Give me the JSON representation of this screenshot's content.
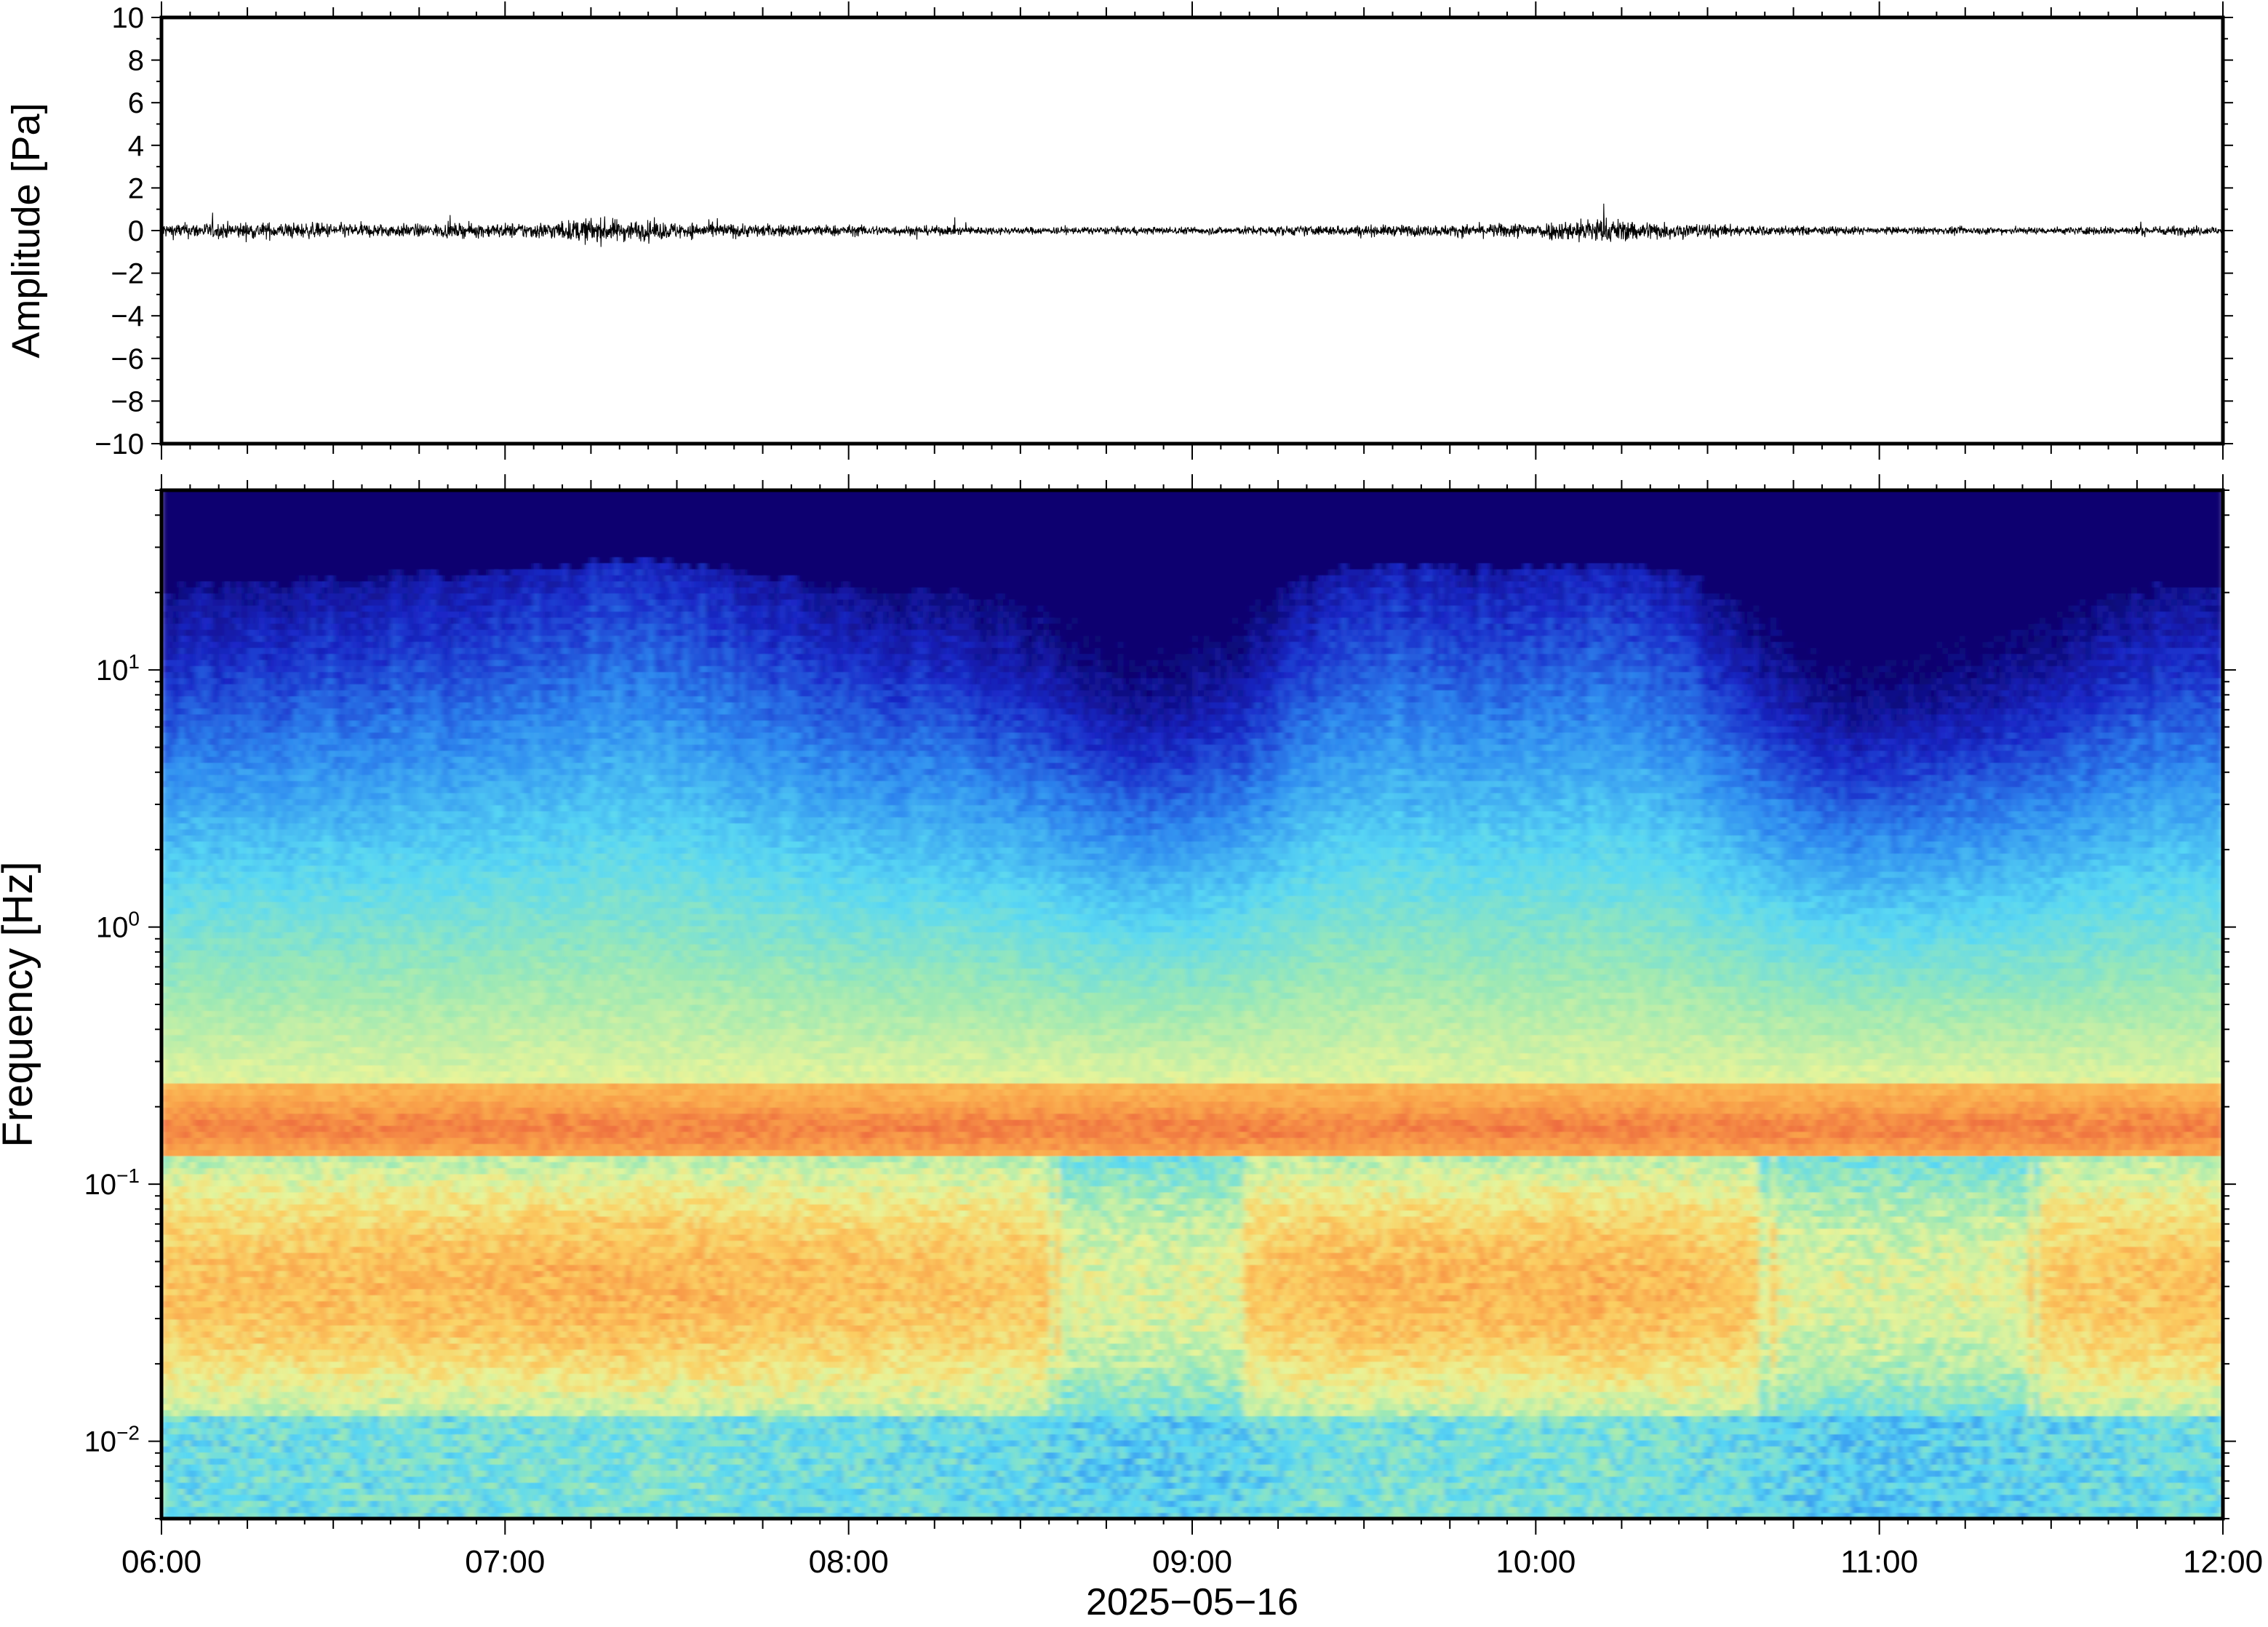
{
  "chart_data": [
    {
      "type": "line",
      "panel": "waveform",
      "ylabel": "Amplitude [Pa]",
      "ylim": [
        -10,
        10
      ],
      "yticks": [
        10,
        8,
        6,
        4,
        2,
        0,
        -2,
        -4,
        -6,
        -8,
        -10
      ],
      "ytick_labels": [
        "10",
        "8",
        "6",
        "4",
        "2",
        "0",
        "−2",
        "−4",
        "−6",
        "−8",
        "−10"
      ],
      "x_start": "06:00",
      "x_end": "12:00",
      "series_color": "#000000",
      "envelope": {
        "times": [
          "06:00",
          "06:15",
          "06:30",
          "06:45",
          "07:00",
          "07:10",
          "07:15",
          "07:20",
          "07:30",
          "07:45",
          "08:00",
          "08:15",
          "08:30",
          "08:45",
          "09:00",
          "09:15",
          "09:30",
          "09:45",
          "10:00",
          "10:05",
          "10:10",
          "10:15",
          "10:30",
          "10:45",
          "11:00",
          "11:15",
          "11:30",
          "11:45",
          "12:00"
        ],
        "peak_amplitude_pa": [
          0.4,
          0.45,
          0.4,
          0.35,
          0.4,
          0.5,
          0.7,
          0.6,
          0.45,
          0.35,
          0.3,
          0.25,
          0.2,
          0.2,
          0.2,
          0.25,
          0.3,
          0.3,
          0.45,
          0.55,
          0.75,
          0.6,
          0.35,
          0.25,
          0.2,
          0.2,
          0.2,
          0.25,
          0.25
        ]
      }
    },
    {
      "type": "heatmap",
      "panel": "spectrogram",
      "ylabel": "Frequency [Hz]",
      "yscale": "log",
      "ylim": [
        0.005,
        50
      ],
      "yticks": [
        {
          "base": "10",
          "exp": "1",
          "value": 10
        },
        {
          "base": "10",
          "exp": "0",
          "value": 1
        },
        {
          "base": "10",
          "exp": "−1",
          "value": 0.1
        },
        {
          "base": "10",
          "exp": "−2",
          "value": 0.01
        }
      ],
      "xlabel": "2025−05−16",
      "xticks": [
        "06:00",
        "07:00",
        "08:00",
        "09:00",
        "10:00",
        "11:00",
        "12:00"
      ],
      "colormap": "jet",
      "colormap_stops": [
        "#0c0570",
        "#1a28c8",
        "#2f8cf0",
        "#58d8f4",
        "#9ce8b4",
        "#e8f59a",
        "#fbd063",
        "#f9a049",
        "#e8503a"
      ],
      "notable_features": {
        "microseism_band_hz": [
          0.12,
          0.25
        ],
        "quiet_high_freq_intervals": [
          "08:45-09:10",
          "10:45-11:00"
        ],
        "active_intervals": [
          "07:15-07:30",
          "09:20-09:40",
          "09:55-10:20"
        ]
      }
    }
  ]
}
